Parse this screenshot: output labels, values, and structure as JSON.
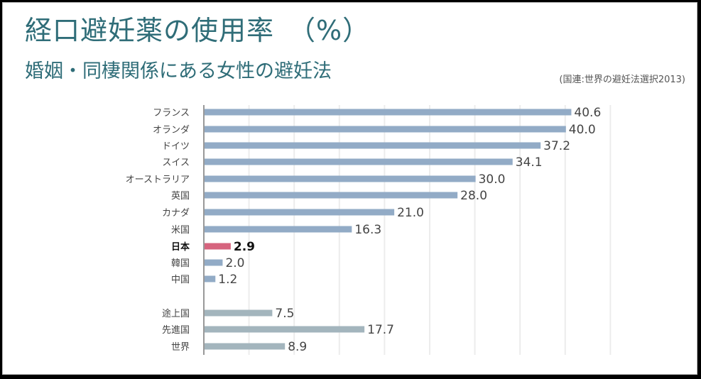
{
  "title": "経口避妊薬の使用率　（%）",
  "subtitle": "婚姻・同棲関係にある女性の避妊法",
  "source": "(国連:世界の避妊法選択2013)",
  "colors": {
    "title": "#2f6d78",
    "bar_country": "#92abc6",
    "bar_highlight": "#d6647e",
    "bar_group": "#a3b5bd",
    "grid": "#ececec",
    "axis": "#999999"
  },
  "chart_data": {
    "type": "bar",
    "orientation": "horizontal",
    "title": "経口避妊薬の使用率　（%）",
    "xlabel": "",
    "ylabel": "",
    "xlim": [
      0,
      45
    ],
    "grid": true,
    "grid_step": 5,
    "categories": [
      "フランス",
      "オランダ",
      "ドイツ",
      "スイス",
      "オーストラリア",
      "英国",
      "カナダ",
      "米国",
      "日本",
      "韓国",
      "中国",
      "途上国",
      "先進国",
      "世界"
    ],
    "values": [
      40.6,
      40.0,
      37.2,
      34.1,
      30.0,
      28.0,
      21.0,
      16.3,
      2.9,
      2.0,
      1.2,
      7.5,
      17.7,
      8.9
    ],
    "value_labels": [
      "40.6",
      "40.0",
      "37.2",
      "34.1",
      "30.0",
      "28.0",
      "21.0",
      "16.3",
      "2.9",
      "2.0",
      "1.2",
      "7.5",
      "17.7",
      "8.9"
    ],
    "groups": [
      "country",
      "country",
      "country",
      "country",
      "country",
      "country",
      "country",
      "country",
      "highlight",
      "country",
      "country",
      "aggregate",
      "aggregate",
      "aggregate"
    ],
    "highlight": "日本"
  }
}
